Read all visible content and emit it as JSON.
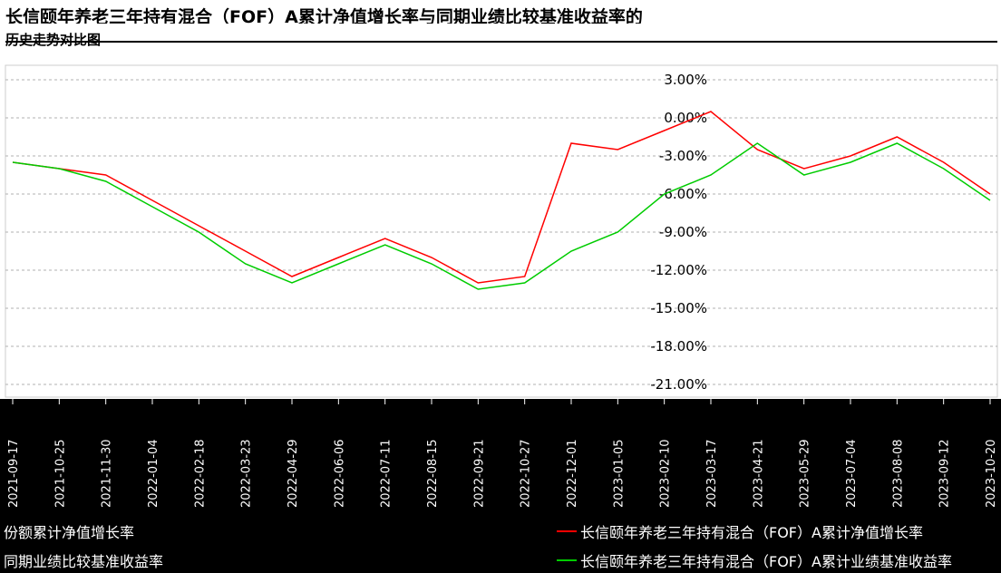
{
  "header": {
    "title": "长信颐年养老三年持有混合（FOF）A累计净值增长率与同期业绩比较基准收益率的",
    "subtitle": "历史走势对比图"
  },
  "legend": {
    "left_items": [
      "份额累计净值增长率",
      "同期业绩比较基准收益率"
    ],
    "right_items": [
      {
        "label": "长信颐年养老三年持有混合（FOF）A累计净值增长率",
        "color": "#ff0000"
      },
      {
        "label": "长信颐年养老三年持有混合（FOF）A累计业绩基准收益率",
        "color": "#00cc00"
      }
    ]
  },
  "chart_data": {
    "type": "line",
    "ylim": [
      -21,
      3
    ],
    "yticks": [
      "3.00%",
      "0.00%",
      "-3.00%",
      "-6.00%",
      "-9.00%",
      "-12.00%",
      "-15.00%",
      "-18.00%",
      "-21.00%"
    ],
    "categories": [
      "2021-09-17",
      "2021-10-25",
      "2021-11-30",
      "2022-01-04",
      "2022-02-18",
      "2022-03-23",
      "2022-04-29",
      "2022-06-06",
      "2022-07-11",
      "2022-08-15",
      "2022-09-21",
      "2022-10-27",
      "2022-12-01",
      "2023-01-05",
      "2023-02-10",
      "2023-03-17",
      "2023-04-21",
      "2023-05-29",
      "2023-07-04",
      "2023-08-08",
      "2023-09-12",
      "2023-10-20"
    ],
    "series": [
      {
        "name": "长信颐年养老三年持有混合（FOF）A累计净值增长率",
        "color": "#ff0000",
        "values": [
          -3.5,
          -4.0,
          -4.5,
          -6.5,
          -8.5,
          -10.5,
          -12.5,
          -11.0,
          -9.5,
          -11.0,
          -13.0,
          -12.5,
          -2.0,
          -2.5,
          -1.0,
          0.5,
          -2.5,
          -4.0,
          -3.0,
          -1.5,
          -3.5,
          -6.0
        ]
      },
      {
        "name": "长信颐年养老三年持有混合（FOF）A累计业绩基准收益率",
        "color": "#00cc00",
        "values": [
          -3.5,
          -4.0,
          -5.0,
          -7.0,
          -9.0,
          -11.5,
          -13.0,
          -11.5,
          -10.0,
          -11.5,
          -13.5,
          -13.0,
          -10.5,
          -9.0,
          -6.0,
          -4.5,
          -2.0,
          -4.5,
          -3.5,
          -2.0,
          -4.0,
          -6.5
        ]
      }
    ]
  }
}
